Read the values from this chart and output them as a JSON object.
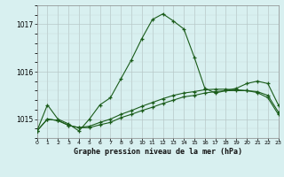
{
  "title": "Graphe pression niveau de la mer (hPa)",
  "background_color": "#d8f0f0",
  "grid_major_color": "#b8c8c8",
  "grid_minor_color": "#c8d8d8",
  "line_color": "#1a5c1a",
  "xlim": [
    0,
    23
  ],
  "ylim": [
    1014.6,
    1017.4
  ],
  "yticks": [
    1015,
    1016,
    1017
  ],
  "line1_y": [
    1014.75,
    1015.3,
    1015.0,
    1014.9,
    1014.75,
    1015.0,
    1015.3,
    1015.45,
    1015.85,
    1016.25,
    1016.7,
    1017.1,
    1017.22,
    1017.07,
    1016.9,
    1016.3,
    1015.65,
    1015.55,
    1015.6,
    1015.65,
    1015.75,
    1015.8,
    1015.75,
    1015.3
  ],
  "line2_y": [
    1014.75,
    1015.0,
    1014.97,
    1014.87,
    1014.82,
    1014.82,
    1014.88,
    1014.93,
    1015.03,
    1015.1,
    1015.18,
    1015.25,
    1015.33,
    1015.4,
    1015.47,
    1015.5,
    1015.55,
    1015.58,
    1015.6,
    1015.6,
    1015.6,
    1015.58,
    1015.5,
    1015.15
  ],
  "line3_y": [
    1014.75,
    1015.0,
    1014.97,
    1014.87,
    1014.82,
    1014.85,
    1014.93,
    1015.0,
    1015.1,
    1015.18,
    1015.27,
    1015.35,
    1015.43,
    1015.5,
    1015.55,
    1015.58,
    1015.62,
    1015.63,
    1015.63,
    1015.62,
    1015.6,
    1015.56,
    1015.45,
    1015.1
  ]
}
